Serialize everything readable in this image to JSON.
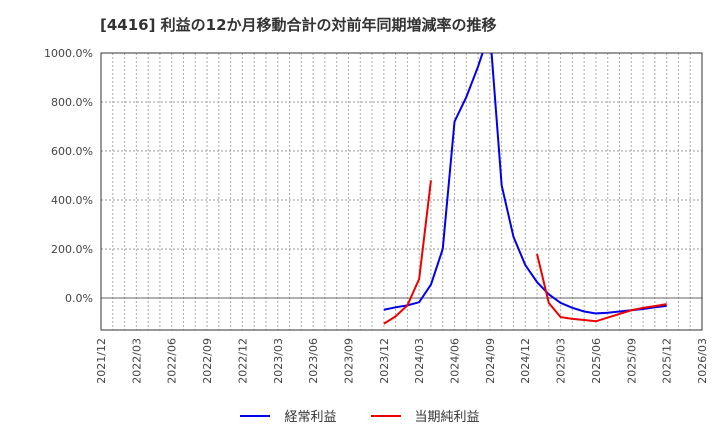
{
  "title": "[4416]  利益の12か月移動合計の対前年同期増減率の推移",
  "colors": {
    "blue": "#0000ee",
    "red": "#ee0000",
    "grid": "#999999",
    "axis": "#333333"
  },
  "legend": [
    {
      "label": "経常利益",
      "color": "#0000ee"
    },
    {
      "label": "当期純利益",
      "color": "#ee0000"
    }
  ],
  "chart_data": {
    "type": "line",
    "title": "[4416]  利益の12か月移動合計の対前年同期増減率の推移",
    "xlabel": "",
    "ylabel": "",
    "ylim": [
      -130,
      1000
    ],
    "yticks": [
      "0.0%",
      "200.0%",
      "400.0%",
      "600.0%",
      "800.0%",
      "1000.0%"
    ],
    "ytick_values": [
      0,
      200,
      400,
      600,
      800,
      1000
    ],
    "xticks": [
      "2021/12",
      "2022/03",
      "2022/06",
      "2022/09",
      "2022/12",
      "2023/03",
      "2023/06",
      "2023/09",
      "2023/12",
      "2024/03",
      "2024/06",
      "2024/09",
      "2024/12",
      "2025/03",
      "2025/06",
      "2025/09",
      "2025/12",
      "2026/03"
    ],
    "grid": true,
    "legend_position": "bottom",
    "x": [
      "2023/12",
      "2024/01",
      "2024/02",
      "2024/03",
      "2024/04",
      "2024/05",
      "2024/06",
      "2024/07",
      "2024/08",
      "2024/09",
      "2024/10",
      "2024/11",
      "2024/12",
      "2025/01",
      "2025/02",
      "2025/03",
      "2025/04",
      "2025/05",
      "2025/06",
      "2025/07",
      "2025/08",
      "2025/09",
      "2025/10",
      "2025/11",
      "2025/12"
    ],
    "series": [
      {
        "name": "経常利益",
        "color": "#0000ee",
        "values": [
          -48,
          -38,
          -30,
          -17,
          55,
          200,
          720,
          820,
          945,
          1090,
          460,
          250,
          135,
          65,
          15,
          -20,
          -40,
          -55,
          -63,
          -60,
          -55,
          -50,
          -45,
          -38,
          -32
        ]
      },
      {
        "name": "当期純利益",
        "color": "#ee0000",
        "values": [
          -105,
          -75,
          -30,
          78,
          480,
          null,
          null,
          null,
          null,
          null,
          null,
          null,
          null,
          180,
          -20,
          -78,
          -85,
          -90,
          -95,
          -80,
          -65,
          -50,
          -40,
          -33,
          -25
        ]
      }
    ]
  }
}
